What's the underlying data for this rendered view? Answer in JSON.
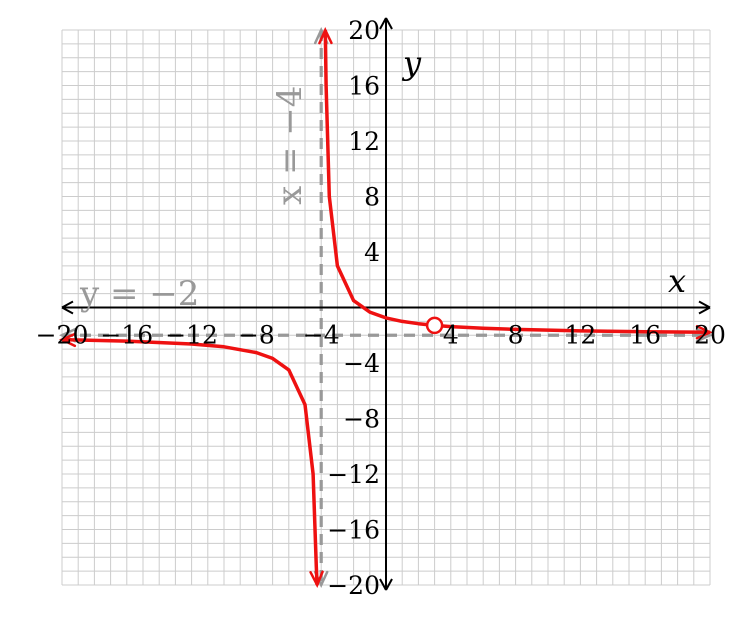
{
  "chart_data": {
    "type": "line",
    "xlabel": "x",
    "ylabel": "y",
    "xlim": [
      -20,
      20
    ],
    "ylim": [
      -20,
      20
    ],
    "grid": true,
    "x_ticks": [
      -20,
      -16,
      -12,
      -8,
      -4,
      4,
      8,
      12,
      16,
      20
    ],
    "y_ticks": [
      -20,
      -16,
      -12,
      -8,
      -4,
      4,
      8,
      12,
      16,
      20
    ],
    "x_tick_labels": [
      "−20",
      "−16",
      "−12",
      "−8",
      "−4",
      "4",
      "8",
      "12",
      "16",
      "20"
    ],
    "y_tick_labels": [
      "−20",
      "−16",
      "−12",
      "−8",
      "−4",
      "4",
      "8",
      "12",
      "16",
      "20"
    ],
    "series": [
      {
        "values_left_branch": [
          [
            -20,
            -2.31
          ],
          [
            -16,
            -2.42
          ],
          [
            -12,
            -2.63
          ],
          [
            -10,
            -2.83
          ],
          [
            -8,
            -3.25
          ],
          [
            -7,
            -3.67
          ],
          [
            -6,
            -4.5
          ],
          [
            -5,
            -7.0
          ],
          [
            -4.5,
            -12.0
          ],
          [
            -4.3,
            -18.67
          ],
          [
            -4.25,
            -20
          ]
        ],
        "values_right_branch": [
          [
            -3.75,
            20
          ],
          [
            -3.7,
            16.0
          ],
          [
            -3.5,
            8.0
          ],
          [
            -3,
            3.0
          ],
          [
            -2,
            0.5
          ],
          [
            -1,
            -0.33
          ],
          [
            0,
            -0.75
          ],
          [
            1,
            -1.0
          ],
          [
            2,
            -1.17
          ],
          [
            3,
            -1.29
          ],
          [
            4,
            -1.38
          ],
          [
            6,
            -1.5
          ],
          [
            8,
            -1.58
          ],
          [
            12,
            -1.69
          ],
          [
            16,
            -1.75
          ],
          [
            20,
            -1.79
          ]
        ]
      }
    ],
    "hole": {
      "x": 3,
      "y": -1.29
    },
    "asymptotes": {
      "vertical": {
        "x": -4,
        "label": "x = −4"
      },
      "horizontal": {
        "y": -2,
        "label": "y = −2"
      }
    },
    "colors": {
      "curve": "#ee1111",
      "grid": "#cccccc",
      "asymptote": "#999999",
      "axis": "#000000"
    }
  }
}
